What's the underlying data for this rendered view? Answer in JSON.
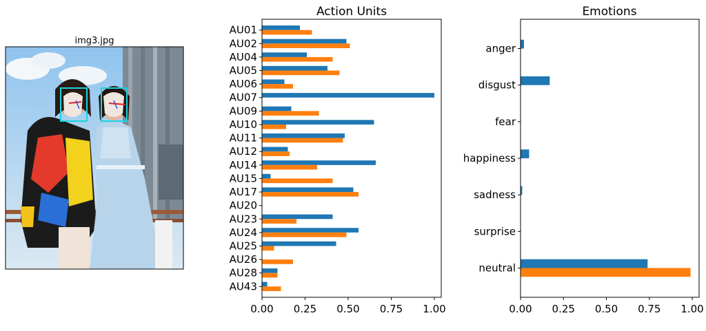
{
  "image_panel": {
    "filename": "img3.jpg"
  },
  "colors": {
    "series_a": "#1f77b4",
    "series_b": "#ff7f0e",
    "face_box": "#19d3e0"
  },
  "chart_data": [
    {
      "type": "bar",
      "orientation": "horizontal",
      "title": "Action Units",
      "xlabel": "",
      "ylabel": "",
      "xlim": [
        0,
        1.04
      ],
      "xticks": [
        "0.00",
        "0.25",
        "0.50",
        "0.75",
        "1.00"
      ],
      "xtick_values": [
        0,
        0.25,
        0.5,
        0.75,
        1.0
      ],
      "grid": false,
      "categories": [
        "AU01",
        "AU02",
        "AU04",
        "AU05",
        "AU06",
        "AU07",
        "AU09",
        "AU10",
        "AU11",
        "AU12",
        "AU14",
        "AU15",
        "AU17",
        "AU20",
        "AU23",
        "AU24",
        "AU25",
        "AU26",
        "AU28",
        "AU43"
      ],
      "series": [
        {
          "values": [
            0.22,
            0.49,
            0.26,
            0.38,
            0.13,
            1.0,
            0.17,
            0.65,
            0.48,
            0.15,
            0.66,
            0.05,
            0.53,
            0.0,
            0.41,
            0.56,
            0.43,
            0.0,
            0.09,
            0.03
          ]
        },
        {
          "values": [
            0.29,
            0.51,
            0.41,
            0.45,
            0.18,
            0.0,
            0.33,
            0.14,
            0.47,
            0.16,
            0.32,
            0.41,
            0.56,
            0.0,
            0.2,
            0.49,
            0.07,
            0.18,
            0.09,
            0.11
          ]
        }
      ]
    },
    {
      "type": "bar",
      "orientation": "horizontal",
      "title": "Emotions",
      "xlabel": "",
      "ylabel": "",
      "xlim": [
        0,
        1.04
      ],
      "xticks": [
        "0.00",
        "0.25",
        "0.50",
        "0.75",
        "1.00"
      ],
      "xtick_values": [
        0,
        0.25,
        0.5,
        0.75,
        1.0
      ],
      "grid": false,
      "categories": [
        "anger",
        "disgust",
        "fear",
        "happiness",
        "sadness",
        "surprise",
        "neutral"
      ],
      "series": [
        {
          "values": [
            0.02,
            0.17,
            0.0,
            0.05,
            0.01,
            0.0,
            0.74
          ]
        },
        {
          "values": [
            0.0,
            0.0,
            0.0,
            0.0,
            0.0,
            0.0,
            0.99
          ]
        }
      ]
    }
  ]
}
